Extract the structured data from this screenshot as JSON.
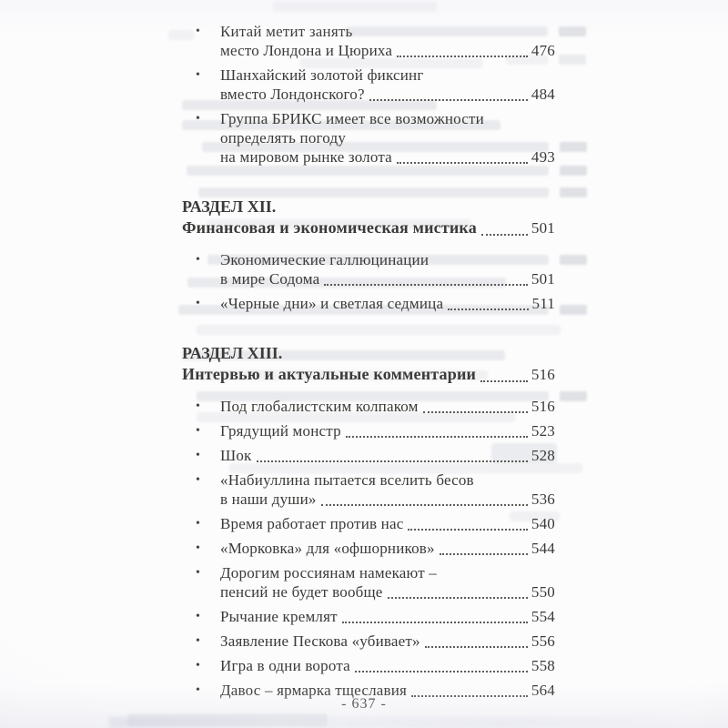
{
  "folio": "- 637 -",
  "toc": {
    "bullet_glyph": "•",
    "text_color": "#3b3a38",
    "paper_color": "#fcfcfd",
    "leading_entries": [
      {
        "lines": [
          "Китай метит занять",
          "место Лондона и Цюриха"
        ],
        "page": "476"
      },
      {
        "lines": [
          "Шанхайский золотой фиксинг",
          "вместо Лондонского?"
        ],
        "page": "484"
      },
      {
        "lines": [
          "Группа БРИКС имеет все возможности",
          "определять погоду",
          "на мировом рынке золота"
        ],
        "page": "493"
      }
    ],
    "sections": [
      {
        "kicker": "РАЗДЕЛ XII.",
        "title": "Финансовая и экономическая мистика",
        "page": "501",
        "entries": [
          {
            "lines": [
              "Экономические галлюцинации",
              "в мире Содома"
            ],
            "page": "501"
          },
          {
            "lines": [
              "«Черные дни» и светлая седмица"
            ],
            "page": "511"
          }
        ]
      },
      {
        "kicker": "РАЗДЕЛ XIII.",
        "title": "Интервью и актуальные комментарии",
        "page": "516",
        "entries": [
          {
            "lines": [
              "Под глобалистским колпаком"
            ],
            "page": "516"
          },
          {
            "lines": [
              "Грядущий монстр"
            ],
            "page": "523"
          },
          {
            "lines": [
              "Шок"
            ],
            "page": "528"
          },
          {
            "lines": [
              "«Набиуллина пытается вселить бесов",
              "в наши души»"
            ],
            "page": "536"
          },
          {
            "lines": [
              "Время работает против нас"
            ],
            "page": "540"
          },
          {
            "lines": [
              "«Морковка» для «офшорников»"
            ],
            "page": "544"
          },
          {
            "lines": [
              "Дорогим россиянам намекают –",
              "пенсий не будет вообще"
            ],
            "page": "550"
          },
          {
            "lines": [
              "Рычание кремлят"
            ],
            "page": "554"
          },
          {
            "lines": [
              "Заявление Пескова «убивает»"
            ],
            "page": "556"
          },
          {
            "lines": [
              "Игра в одни ворота"
            ],
            "page": "558"
          },
          {
            "lines": [
              "Давос – ярмарка тщеславия"
            ],
            "page": "564"
          }
        ]
      }
    ]
  }
}
